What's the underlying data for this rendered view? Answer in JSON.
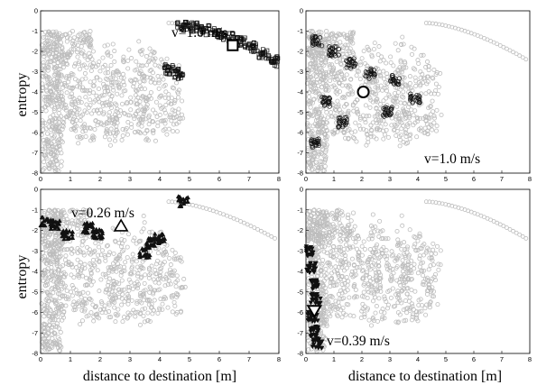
{
  "chart_data": [
    {
      "type": "scatter",
      "panel": "top-left",
      "xlabel": "",
      "ylabel": "entropy",
      "xlim": [
        0,
        8
      ],
      "ylim": [
        -8,
        0
      ],
      "x_ticks": [
        "0",
        "1",
        "2",
        "3",
        "4",
        "5",
        "6",
        "7",
        "8"
      ],
      "y_ticks": [
        "0",
        "-1",
        "-2",
        "-3",
        "-4",
        "-5",
        "-6",
        "-7",
        "-8"
      ],
      "annotation": "v=1.0 m/s",
      "highlight_marker": "square",
      "highlight_point": {
        "x": 6.45,
        "y": -1.7
      },
      "highlight_series": [
        {
          "x": 4.75,
          "y": -0.75
        },
        {
          "x": 5.1,
          "y": -0.82
        },
        {
          "x": 5.5,
          "y": -0.95
        },
        {
          "x": 5.9,
          "y": -1.1
        },
        {
          "x": 6.3,
          "y": -1.3
        },
        {
          "x": 6.7,
          "y": -1.55
        },
        {
          "x": 7.1,
          "y": -1.8
        },
        {
          "x": 7.5,
          "y": -2.1
        },
        {
          "x": 7.9,
          "y": -2.5
        },
        {
          "x": 4.3,
          "y": -2.9
        },
        {
          "x": 4.6,
          "y": -3.1
        }
      ]
    },
    {
      "type": "scatter",
      "panel": "top-right",
      "xlabel": "",
      "ylabel": "",
      "xlim": [
        0,
        8
      ],
      "ylim": [
        -8,
        0
      ],
      "x_ticks": [
        "0",
        "1",
        "2",
        "3",
        "4",
        "5",
        "6",
        "7",
        "8"
      ],
      "y_ticks": [
        "0",
        "-1",
        "-2",
        "-3",
        "-4",
        "-5",
        "-6",
        "-7",
        "-8"
      ],
      "annotation": "v=1.0 m/s",
      "highlight_marker": "circle",
      "highlight_point": {
        "x": 2.05,
        "y": -4.0
      },
      "highlight_series": [
        {
          "x": 0.4,
          "y": -1.5
        },
        {
          "x": 1.0,
          "y": -2.0
        },
        {
          "x": 1.6,
          "y": -2.6
        },
        {
          "x": 2.3,
          "y": -3.1
        },
        {
          "x": 3.2,
          "y": -3.4
        },
        {
          "x": 0.7,
          "y": -4.5
        },
        {
          "x": 1.3,
          "y": -5.5
        },
        {
          "x": 0.3,
          "y": -6.5
        },
        {
          "x": 2.9,
          "y": -5.0
        },
        {
          "x": 3.9,
          "y": -4.3
        }
      ]
    },
    {
      "type": "scatter",
      "panel": "bottom-left",
      "xlabel": "distance to destination [m]",
      "ylabel": "entropy",
      "xlim": [
        0,
        8
      ],
      "ylim": [
        -8,
        0
      ],
      "x_ticks": [
        "0",
        "1",
        "2",
        "3",
        "4",
        "5",
        "6",
        "7",
        "8"
      ],
      "y_ticks": [
        "0",
        "-1",
        "-2",
        "-3",
        "-4",
        "-5",
        "-6",
        "-7",
        "-8"
      ],
      "annotation": "v=0.26 m/s",
      "highlight_marker": "triangle-up",
      "highlight_point": {
        "x": 2.7,
        "y": -1.8
      },
      "highlight_series": [
        {
          "x": 0.1,
          "y": -1.6
        },
        {
          "x": 0.5,
          "y": -1.7
        },
        {
          "x": 0.9,
          "y": -2.2
        },
        {
          "x": 1.6,
          "y": -1.9
        },
        {
          "x": 1.9,
          "y": -2.2
        },
        {
          "x": 3.7,
          "y": -2.6
        },
        {
          "x": 4.0,
          "y": -2.4
        },
        {
          "x": 3.5,
          "y": -3.1
        },
        {
          "x": 4.8,
          "y": -0.6
        }
      ]
    },
    {
      "type": "scatter",
      "panel": "bottom-right",
      "xlabel": "distance to destination [m]",
      "ylabel": "",
      "xlim": [
        0,
        8
      ],
      "ylim": [
        -8,
        0
      ],
      "x_ticks": [
        "0",
        "1",
        "2",
        "3",
        "4",
        "5",
        "6",
        "7",
        "8"
      ],
      "y_ticks": [
        "0",
        "-1",
        "-2",
        "-3",
        "-4",
        "-5",
        "-6",
        "-7",
        "-8"
      ],
      "annotation": "v=0.39 m/s",
      "highlight_marker": "triangle-down",
      "highlight_point": {
        "x": 0.3,
        "y": -5.9
      },
      "highlight_series": [
        {
          "x": 0.1,
          "y": -3.0
        },
        {
          "x": 0.2,
          "y": -3.8
        },
        {
          "x": 0.3,
          "y": -4.6
        },
        {
          "x": 0.35,
          "y": -5.3
        },
        {
          "x": 0.25,
          "y": -6.2
        },
        {
          "x": 0.3,
          "y": -6.9
        },
        {
          "x": 0.4,
          "y": -7.5
        }
      ]
    }
  ],
  "colors": {
    "background_points": "#bdbdbd",
    "highlight_points": "#111111",
    "axis": "#000000"
  }
}
